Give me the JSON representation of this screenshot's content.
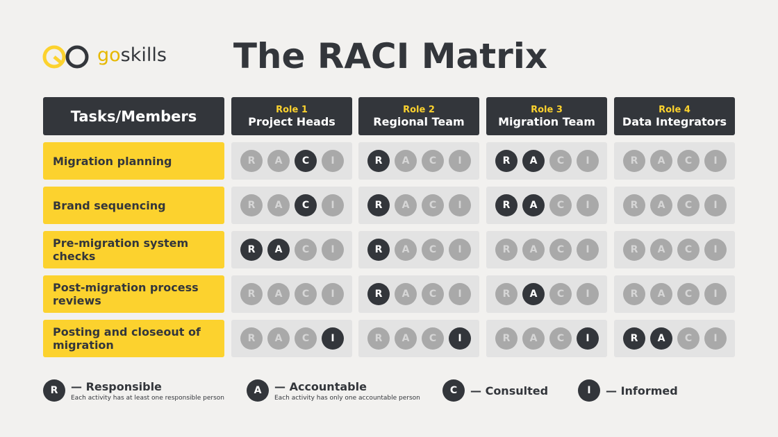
{
  "logo": {
    "part1": "go",
    "part2": "skills"
  },
  "title": "The RACI Matrix",
  "header": "Tasks/Members",
  "letters": [
    "R",
    "A",
    "C",
    "I"
  ],
  "roles": [
    {
      "label": "Role 1",
      "name": "Project Heads"
    },
    {
      "label": "Role 2",
      "name": "Regional Team"
    },
    {
      "label": "Role 3",
      "name": "Migration Team"
    },
    {
      "label": "Role 4",
      "name": "Data Integrators"
    }
  ],
  "tasks": [
    {
      "name": "Migration planning",
      "cells": [
        [
          false,
          false,
          true,
          false
        ],
        [
          true,
          false,
          false,
          false
        ],
        [
          true,
          true,
          false,
          false
        ],
        [
          false,
          false,
          false,
          false
        ]
      ]
    },
    {
      "name": "Brand sequencing",
      "cells": [
        [
          false,
          false,
          true,
          false
        ],
        [
          true,
          false,
          false,
          false
        ],
        [
          true,
          true,
          false,
          false
        ],
        [
          false,
          false,
          false,
          false
        ]
      ]
    },
    {
      "name": "Pre-migration system checks",
      "cells": [
        [
          true,
          true,
          false,
          false
        ],
        [
          true,
          false,
          false,
          false
        ],
        [
          false,
          false,
          false,
          false
        ],
        [
          false,
          false,
          false,
          false
        ]
      ]
    },
    {
      "name": "Post-migration process reviews",
      "cells": [
        [
          false,
          false,
          false,
          false
        ],
        [
          true,
          false,
          false,
          false
        ],
        [
          false,
          true,
          false,
          false
        ],
        [
          false,
          false,
          false,
          false
        ]
      ]
    },
    {
      "name": "Posting and closeout of migration",
      "cells": [
        [
          false,
          false,
          false,
          true
        ],
        [
          false,
          false,
          false,
          true
        ],
        [
          false,
          false,
          false,
          true
        ],
        [
          true,
          true,
          false,
          false
        ]
      ]
    }
  ],
  "legend": [
    {
      "letter": "R",
      "label": "— Responsible",
      "description": "Each activity has at least one responsible person"
    },
    {
      "letter": "A",
      "label": "— Accountable",
      "description": "Each activity has only one accountable person"
    },
    {
      "letter": "C",
      "label": "— Consulted"
    },
    {
      "letter": "I",
      "label": "— Informed"
    }
  ]
}
